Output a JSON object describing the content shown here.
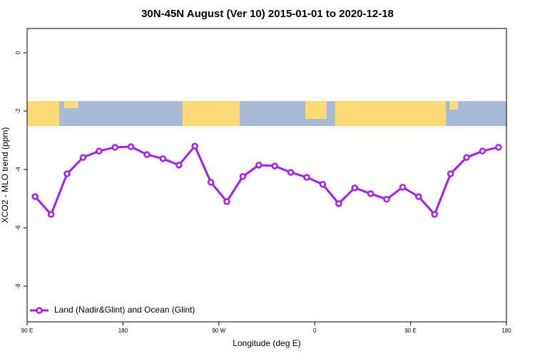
{
  "chart_data": {
    "type": "line",
    "title": "30N-45N August (Ver 10)   2015-01-01 to 2020-12-18",
    "xlabel": "Longitude (deg E)",
    "ylabel": "XCO2 - MLO trend (ppm)",
    "x": [
      97.5,
      112.5,
      127.5,
      142.5,
      157.5,
      172.5,
      187.5,
      202.5,
      217.5,
      232.5,
      247.5,
      262.5,
      277.5,
      292.5,
      307.5,
      322.5,
      337.5,
      352.5,
      367.5,
      382.5,
      397.5,
      412.5,
      427.5,
      442.5,
      457.5,
      472.5,
      487.5,
      502.5,
      517.5,
      532.5
    ],
    "series": [
      {
        "name": "Land (Nadir&Glint) and Ocean (Glint)",
        "color": "#a020f0",
        "values": [
          -4.93,
          -5.54,
          -4.15,
          -3.59,
          -3.37,
          -3.24,
          -3.22,
          -3.49,
          -3.63,
          -3.85,
          -3.2,
          -4.44,
          -5.1,
          -4.24,
          -3.85,
          -3.88,
          -4.1,
          -4.27,
          -4.51,
          -5.17,
          -4.63,
          -4.83,
          -5.02,
          -4.61,
          -4.93,
          -5.54,
          -4.15,
          -3.59,
          -3.37,
          -3.24
        ]
      }
    ],
    "xlim": [
      90,
      540
    ],
    "xticks": [
      {
        "value": 90,
        "label": "90 E"
      },
      180,
      {
        "value": 270,
        "label": "90 W"
      },
      {
        "value": 360,
        "label": "0"
      },
      {
        "value": 450,
        "label": "90 E"
      },
      {
        "value": 540,
        "label": "180"
      }
    ],
    "ylim": [
      -9.22,
      0.83
    ],
    "yticks": [
      0,
      -2,
      -4,
      -6,
      -8
    ],
    "legend": "bottom-left"
  }
}
